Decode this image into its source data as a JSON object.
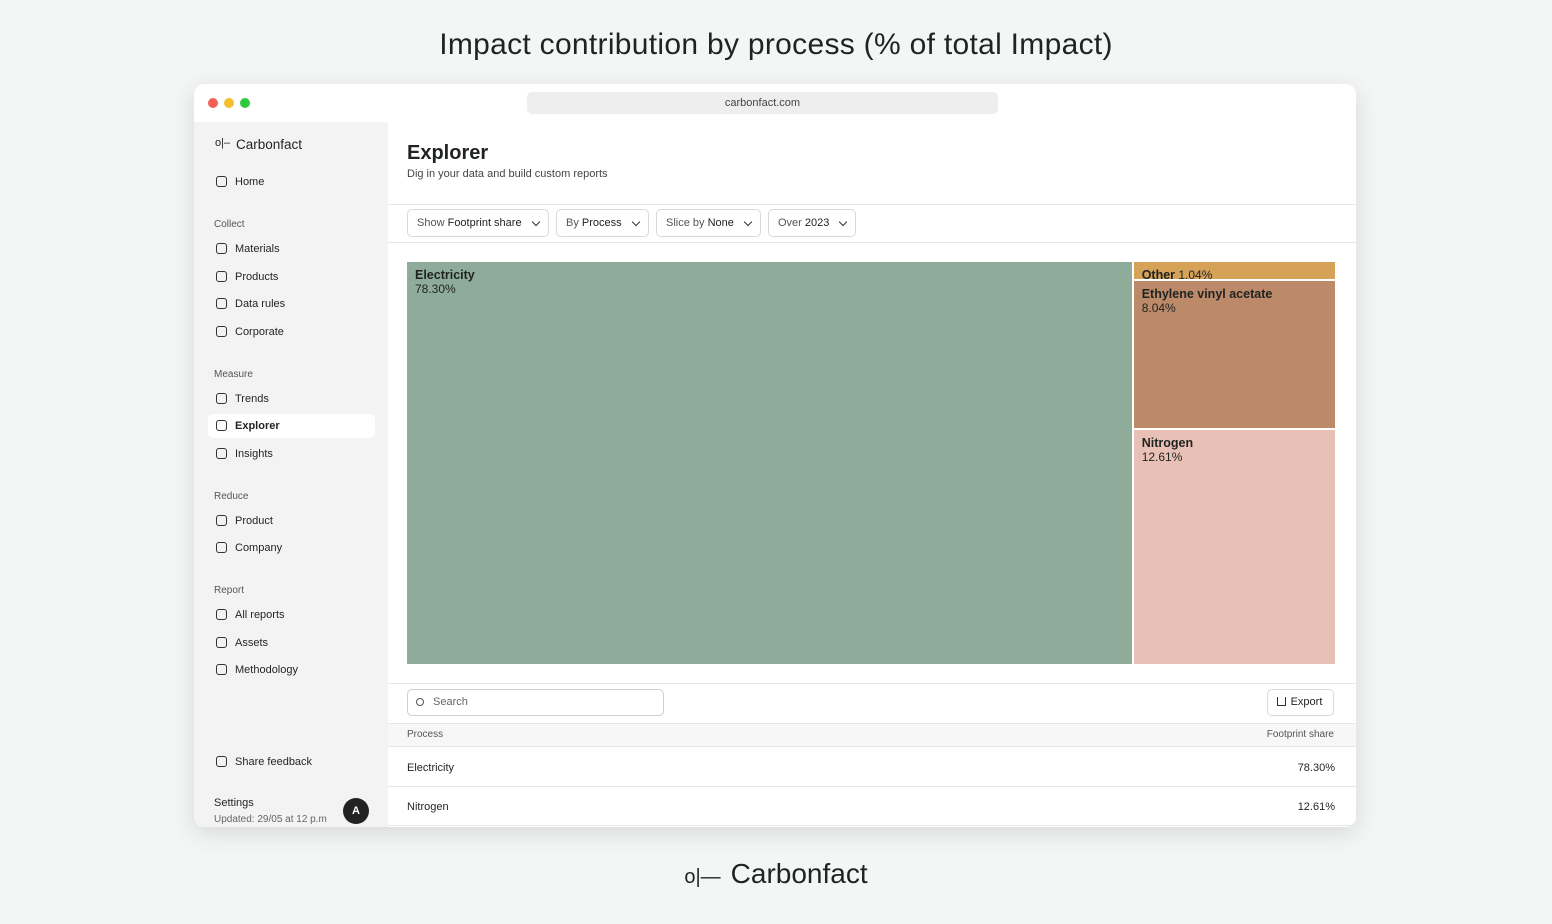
{
  "page_title": "Impact contribution by process (% of total Impact)",
  "browser": {
    "url": "carbonfact.com"
  },
  "sidebar": {
    "brand": "Carbonfact",
    "home": "Home",
    "sections": [
      {
        "heading": "Collect",
        "items": [
          "Materials",
          "Products",
          "Data rules",
          "Corporate"
        ]
      },
      {
        "heading": "Measure",
        "items": [
          "Trends",
          "Explorer",
          "Insights"
        ]
      },
      {
        "heading": "Reduce",
        "items": [
          "Product",
          "Company"
        ]
      },
      {
        "heading": "Report",
        "items": [
          "All reports",
          "Assets",
          "Methodology"
        ]
      }
    ],
    "active": "Explorer",
    "feedback": "Share feedback",
    "settings": "Settings",
    "updated": "Updated: 29/05 at 12 p.m",
    "avatar": "A"
  },
  "header": {
    "title": "Explorer",
    "subtitle": "Dig in your data and build custom reports"
  },
  "filters": [
    {
      "label": "Show",
      "value": "Footprint share"
    },
    {
      "label": "By",
      "value": "Process"
    },
    {
      "label": "Slice by",
      "value": "None"
    },
    {
      "label": "Over",
      "value": "2023"
    }
  ],
  "chart_data": {
    "type": "treemap",
    "categories": [
      "Electricity",
      "Other",
      "Ethylene vinyl acetate",
      "Nitrogen"
    ],
    "values": [
      78.3,
      1.04,
      8.04,
      12.61
    ],
    "value_labels": [
      "78.30%",
      "1.04%",
      "8.04%",
      "12.61%"
    ],
    "colors": [
      "#8fab9a",
      "#d5a258",
      "#bc8a69",
      "#e8c0b6"
    ]
  },
  "table": {
    "search": "Search",
    "export": "Export",
    "columns": [
      "Process",
      "Footprint share"
    ],
    "rows": [
      [
        "Electricity",
        "78.30%"
      ],
      [
        "Nitrogen",
        "12.61%"
      ]
    ]
  },
  "footer_brand": "Carbonfact"
}
